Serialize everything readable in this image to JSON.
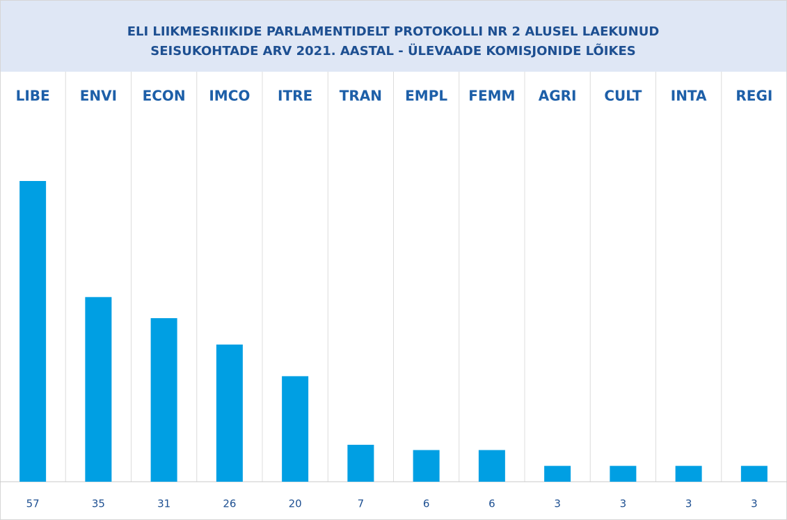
{
  "chart_data": {
    "type": "bar",
    "title": [
      "ELI LIIKMESRIIKIDE PARLAMENTIDELT PROTOKOLLI NR 2 ALUSEL LAEKUNUD",
      "SEISUKOHTADE ARV 2021. AASTAL - ÜLEVAADE KOMISJONIDE LÕIKES"
    ],
    "categories": [
      "LIBE",
      "ENVI",
      "ECON",
      "IMCO",
      "ITRE",
      "TRAN",
      "EMPL",
      "FEMM",
      "AGRI",
      "CULT",
      "INTA",
      "REGI"
    ],
    "values": [
      57,
      35,
      31,
      26,
      20,
      7,
      6,
      6,
      3,
      3,
      3,
      3
    ],
    "color": "#009fe3"
  }
}
